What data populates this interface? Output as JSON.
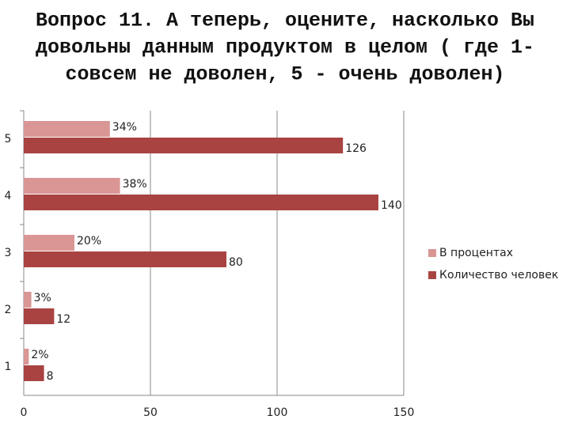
{
  "chart_data": {
    "type": "bar",
    "orientation": "horizontal",
    "title": [
      "Вопрос 11.  А теперь, оцените, насколько Вы",
      "довольны данным продуктом в целом ( где 1-",
      "совсем не доволен, 5 - очень доволен)"
    ],
    "categories": [
      "1",
      "2",
      "3",
      "4",
      "5"
    ],
    "series": [
      {
        "name": "В процентах",
        "color": "#d99694",
        "values": [
          2,
          3,
          20,
          38,
          34
        ],
        "value_labels": [
          "2%",
          "3%",
          "20%",
          "38%",
          "34%"
        ]
      },
      {
        "name": "Количество человек",
        "color": "#a94342",
        "values": [
          8,
          12,
          80,
          140,
          126
        ]
      }
    ],
    "xlim": [
      0,
      150
    ],
    "xticks": [
      0,
      50,
      100,
      150
    ],
    "grid": true,
    "legend": "right"
  }
}
